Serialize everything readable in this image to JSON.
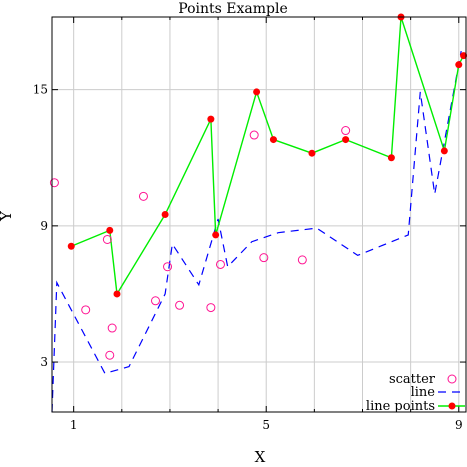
{
  "chart_data": {
    "type": "line",
    "title": "Points Example",
    "xlabel": "X",
    "ylabel": "Y",
    "xlim": [
      0.55,
      9.15
    ],
    "ylim": [
      0.8,
      18.2
    ],
    "x_major_ticks": [
      1,
      5,
      9
    ],
    "x_minor_ticks": [
      2,
      3,
      4,
      6,
      7,
      8
    ],
    "y_major_ticks": [
      3,
      9,
      15
    ],
    "grid": true,
    "legend_position": "bottom-right",
    "colors": {
      "scatter": "#ff1493",
      "line": "#0000ff",
      "line_points_line": "#00ee00",
      "line_points_marker": "#ff0000",
      "grid": "#cccccc",
      "frame": "#000000"
    },
    "series": [
      {
        "name": "scatter",
        "kind": "scatter",
        "marker": "open-circle",
        "points": [
          [
            0.6,
            10.9
          ],
          [
            1.25,
            5.3
          ],
          [
            1.7,
            8.4
          ],
          [
            1.8,
            4.5
          ],
          [
            1.75,
            3.3
          ],
          [
            2.45,
            10.3
          ],
          [
            2.7,
            5.7
          ],
          [
            2.95,
            7.2
          ],
          [
            3.2,
            5.5
          ],
          [
            3.85,
            5.4
          ],
          [
            4.05,
            7.3
          ],
          [
            4.75,
            13.0
          ],
          [
            4.95,
            7.6
          ],
          [
            5.75,
            7.5
          ],
          [
            6.65,
            13.2
          ]
        ]
      },
      {
        "name": "line",
        "kind": "line",
        "style": "dashed",
        "points": [
          [
            0.55,
            0.8
          ],
          [
            0.65,
            6.5
          ],
          [
            0.9,
            5.5
          ],
          [
            1.65,
            2.5
          ],
          [
            2.15,
            2.8
          ],
          [
            2.9,
            6.0
          ],
          [
            3.05,
            8.2
          ],
          [
            3.6,
            6.4
          ],
          [
            4.0,
            9.3
          ],
          [
            4.2,
            7.2
          ],
          [
            4.7,
            8.3
          ],
          [
            5.25,
            8.7
          ],
          [
            6.05,
            8.9
          ],
          [
            6.9,
            7.7
          ],
          [
            7.95,
            8.6
          ],
          [
            8.2,
            14.9
          ],
          [
            8.5,
            10.4
          ],
          [
            9.05,
            16.7
          ]
        ]
      },
      {
        "name": "line points",
        "kind": "line+marker",
        "marker": "filled-circle",
        "points": [
          [
            0.95,
            8.1
          ],
          [
            1.75,
            8.8
          ],
          [
            1.9,
            6.0
          ],
          [
            2.9,
            9.5
          ],
          [
            3.85,
            13.7
          ],
          [
            3.95,
            8.6
          ],
          [
            4.8,
            14.9
          ],
          [
            5.15,
            12.8
          ],
          [
            5.95,
            12.2
          ],
          [
            6.65,
            12.8
          ],
          [
            7.6,
            12.0
          ],
          [
            7.8,
            18.2
          ],
          [
            8.7,
            12.3
          ],
          [
            9.0,
            16.1
          ],
          [
            9.1,
            16.5
          ]
        ]
      }
    ]
  }
}
